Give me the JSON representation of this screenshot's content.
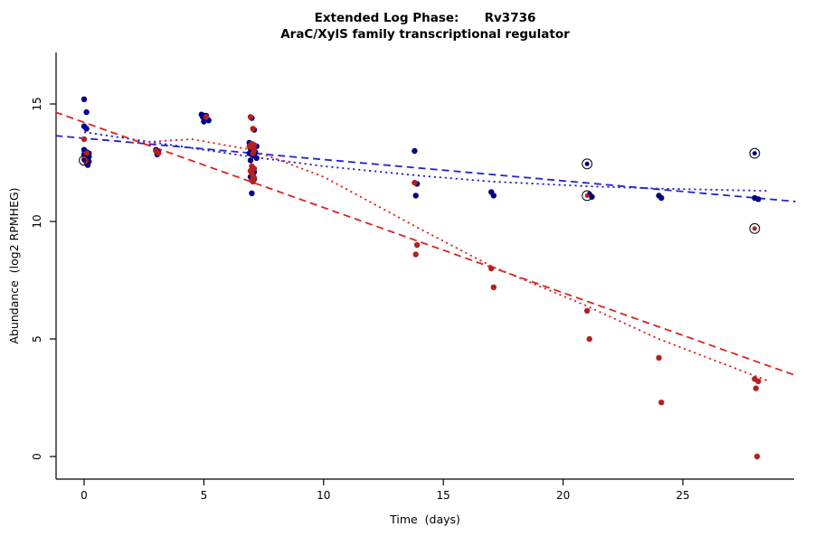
{
  "chart_data": {
    "type": "scatter",
    "title": "Extended Log Phase:      Rv3736",
    "subtitle": "AraC/XylS family transcriptional regulator",
    "xlabel": "Time  (days)",
    "ylabel": "Abundance  (log2 RPMHEG)",
    "xlim": [
      -1.2,
      29.7
    ],
    "ylim": [
      -0.3,
      17.0
    ],
    "x_ticks": [
      0,
      5,
      10,
      15,
      20,
      25
    ],
    "y_ticks": [
      0,
      5,
      10,
      15
    ],
    "grid": false,
    "legend_position": "none",
    "axis_color": "#000000",
    "series": [
      {
        "name": "blue-series",
        "color": "#00008B",
        "points": [
          [
            0,
            15.2
          ],
          [
            0.1,
            14.65
          ],
          [
            0,
            14.05
          ],
          [
            0.1,
            13.95
          ],
          [
            0,
            13.05
          ],
          [
            0.1,
            12.95
          ],
          [
            0.2,
            12.9
          ],
          [
            0,
            12.85
          ],
          [
            0.1,
            12.8
          ],
          [
            0.2,
            12.75
          ],
          [
            0.05,
            12.7
          ],
          [
            0.15,
            12.65
          ],
          [
            0.1,
            12.6
          ],
          [
            0.2,
            12.55
          ],
          [
            0.1,
            12.5
          ],
          [
            0.15,
            12.4
          ],
          [
            3,
            13.05
          ],
          [
            3.1,
            12.95
          ],
          [
            3.05,
            12.85
          ],
          [
            4.9,
            14.55
          ],
          [
            5,
            14.5
          ],
          [
            5.1,
            14.5
          ],
          [
            4.95,
            14.45
          ],
          [
            5.05,
            14.4
          ],
          [
            5.15,
            14.35
          ],
          [
            5.2,
            14.3
          ],
          [
            5,
            14.25
          ],
          [
            7,
            14.4
          ],
          [
            7.1,
            13.9
          ],
          [
            6.9,
            13.35
          ],
          [
            7,
            13.3
          ],
          [
            7.1,
            13.25
          ],
          [
            7.2,
            13.2
          ],
          [
            6.95,
            13.1
          ],
          [
            7.05,
            13.0
          ],
          [
            7.15,
            12.95
          ],
          [
            6.9,
            12.9
          ],
          [
            7,
            12.85
          ],
          [
            7.1,
            12.8
          ],
          [
            7.2,
            12.7
          ],
          [
            6.95,
            12.6
          ],
          [
            7,
            12.2
          ],
          [
            7.1,
            12.1
          ],
          [
            7.05,
            12.0
          ],
          [
            6.95,
            11.9
          ],
          [
            7,
            11.85
          ],
          [
            7.1,
            11.8
          ],
          [
            7,
            11.2
          ],
          [
            13.8,
            13.0
          ],
          [
            13.9,
            11.6
          ],
          [
            13.85,
            11.1
          ],
          [
            17,
            11.25
          ],
          [
            17.1,
            11.1
          ],
          [
            21.1,
            11.15
          ],
          [
            21.2,
            11.05
          ],
          [
            24,
            11.1
          ],
          [
            24.1,
            11.0
          ],
          [
            28,
            11.0
          ],
          [
            28.15,
            10.95
          ]
        ]
      },
      {
        "name": "red-series",
        "color": "#B22222",
        "points": [
          [
            0,
            13.5
          ],
          [
            0.1,
            12.9
          ],
          [
            0,
            12.65
          ],
          [
            0.1,
            12.55
          ],
          [
            3,
            13.0
          ],
          [
            3.1,
            12.9
          ],
          [
            5.1,
            14.45
          ],
          [
            6.95,
            14.45
          ],
          [
            7.05,
            13.95
          ],
          [
            7,
            13.3
          ],
          [
            7.1,
            13.25
          ],
          [
            6.9,
            13.2
          ],
          [
            7,
            13.15
          ],
          [
            7.1,
            13.05
          ],
          [
            7.05,
            12.9
          ],
          [
            7,
            12.35
          ],
          [
            7.1,
            12.25
          ],
          [
            6.95,
            12.15
          ],
          [
            7,
            12.05
          ],
          [
            7.05,
            11.95
          ],
          [
            7.1,
            11.85
          ],
          [
            7,
            11.75
          ],
          [
            7.05,
            11.7
          ],
          [
            13.8,
            11.65
          ],
          [
            13.9,
            9.0
          ],
          [
            13.85,
            8.6
          ],
          [
            17,
            8.0
          ],
          [
            17.1,
            7.2
          ],
          [
            21,
            6.2
          ],
          [
            21.1,
            5.0
          ],
          [
            24,
            4.2
          ],
          [
            24.1,
            2.3
          ],
          [
            28,
            3.3
          ],
          [
            28.15,
            3.2
          ],
          [
            28.05,
            2.9
          ],
          [
            28.1,
            0.0
          ]
        ]
      }
    ],
    "flagged_points": [
      {
        "x": 0,
        "y": 12.6,
        "color": "#00008B"
      },
      {
        "x": 21,
        "y": 12.45,
        "color": "#00008B"
      },
      {
        "x": 21,
        "y": 11.1,
        "color": "#B22222"
      },
      {
        "x": 28,
        "y": 12.9,
        "color": "#00008B"
      },
      {
        "x": 28,
        "y": 9.7,
        "color": "#B22222"
      }
    ],
    "trend_lines": [
      {
        "name": "blue-dashed-linear-fit",
        "color": "#2222CC",
        "style": "dashed",
        "points": [
          [
            -1.2,
            13.65
          ],
          [
            29.7,
            10.85
          ]
        ]
      },
      {
        "name": "blue-dotted-smooth-fit",
        "color": "#2222CC",
        "style": "dotted",
        "points": [
          [
            0,
            13.8
          ],
          [
            5,
            13.05
          ],
          [
            7,
            12.75
          ],
          [
            10,
            12.35
          ],
          [
            14,
            11.95
          ],
          [
            17,
            11.7
          ],
          [
            21,
            11.5
          ],
          [
            24,
            11.4
          ],
          [
            28.6,
            11.3
          ]
        ]
      },
      {
        "name": "red-dashed-linear-fit",
        "color": "#DD2222",
        "style": "dashed",
        "points": [
          [
            -1.2,
            14.65
          ],
          [
            29.7,
            3.45
          ]
        ]
      },
      {
        "name": "red-dotted-smooth-fit",
        "color": "#DD2222",
        "style": "dotted",
        "points": [
          [
            2,
            13.35
          ],
          [
            4.5,
            13.5
          ],
          [
            7,
            13.05
          ],
          [
            10,
            11.9
          ],
          [
            14,
            9.7
          ],
          [
            17,
            8.1
          ],
          [
            21,
            6.4
          ],
          [
            24,
            5.0
          ],
          [
            28.6,
            3.2
          ]
        ]
      }
    ]
  }
}
